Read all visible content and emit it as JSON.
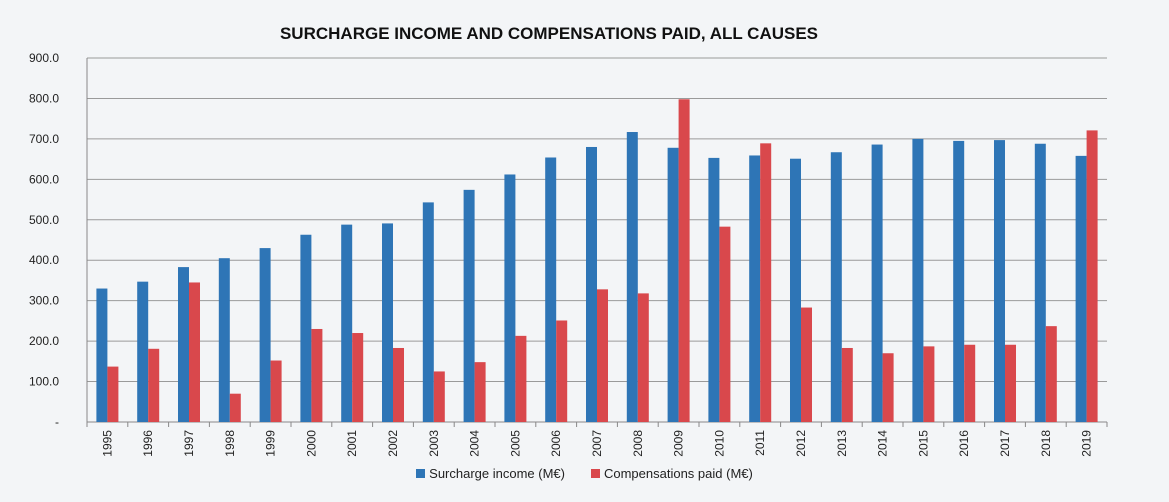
{
  "chart_data": {
    "type": "bar",
    "title": "SURCHARGE INCOME AND COMPENSATIONS PAID, ALL CAUSES",
    "categories": [
      "1995",
      "1996",
      "1997",
      "1998",
      "1999",
      "2000",
      "2001",
      "2002",
      "2003",
      "2004",
      "2005",
      "2006",
      "2007",
      "2008",
      "2009",
      "2010",
      "2011",
      "2012",
      "2013",
      "2014",
      "2015",
      "2016",
      "2017",
      "2018",
      "2019"
    ],
    "series": [
      {
        "name": "Surcharge income (M€)",
        "color": "#2e75b6",
        "values": [
          330,
          347,
          383,
          405,
          430,
          463,
          488,
          491,
          543,
          574,
          612,
          654,
          680,
          717,
          678,
          653,
          659,
          651,
          667,
          686,
          700,
          695,
          697,
          688,
          658
        ]
      },
      {
        "name": "Compensations paid (M€)",
        "color": "#d9484c",
        "values": [
          137,
          181,
          345,
          70,
          152,
          230,
          220,
          183,
          125,
          148,
          213,
          251,
          328,
          318,
          798,
          483,
          689,
          283,
          183,
          170,
          187,
          191,
          191,
          237,
          721
        ]
      }
    ],
    "ylim": [
      0,
      900
    ],
    "yticks": [
      0,
      100,
      200,
      300,
      400,
      500,
      600,
      700,
      800,
      900
    ],
    "ytick_labels": [
      "-",
      "100.0",
      "200.0",
      "300.0",
      "400.0",
      "500.0",
      "600.0",
      "700.0",
      "800.0",
      "900.0"
    ],
    "grid": true,
    "legend_position": "bottom"
  }
}
